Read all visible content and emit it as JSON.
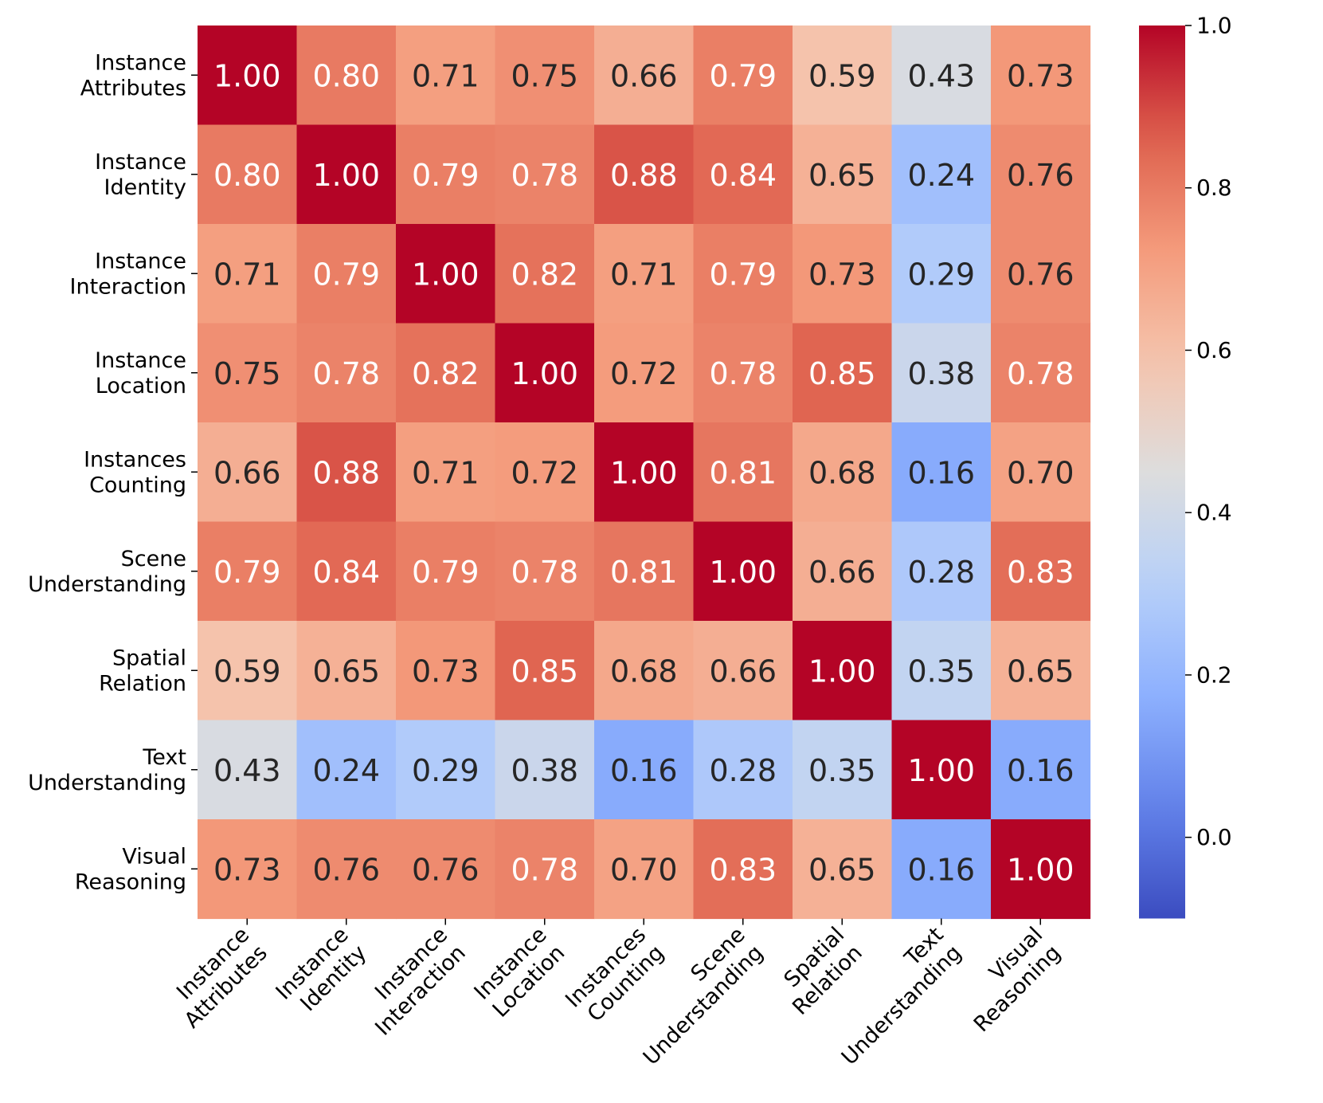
{
  "chart_data": {
    "type": "heatmap",
    "title": "",
    "xlabel": "",
    "ylabel": "",
    "row_labels": [
      [
        "Instance",
        "Attributes"
      ],
      [
        "Instance",
        "Identity"
      ],
      [
        "Instance",
        "Interaction"
      ],
      [
        "Instance",
        "Location"
      ],
      [
        "Instances",
        "Counting"
      ],
      [
        "Scene",
        "Understanding"
      ],
      [
        "Spatial",
        "Relation"
      ],
      [
        "Text",
        "Understanding"
      ],
      [
        "Visual",
        "Reasoning"
      ]
    ],
    "col_labels": [
      [
        "Instance",
        "Attributes"
      ],
      [
        "Instance",
        "Identity"
      ],
      [
        "Instance",
        "Interaction"
      ],
      [
        "Instance",
        "Location"
      ],
      [
        "Instances",
        "Counting"
      ],
      [
        "Scene",
        "Understanding"
      ],
      [
        "Spatial",
        "Relation"
      ],
      [
        "Text",
        "Understanding"
      ],
      [
        "Visual",
        "Reasoning"
      ]
    ],
    "values": [
      [
        1.0,
        0.8,
        0.71,
        0.75,
        0.66,
        0.79,
        0.59,
        0.43,
        0.73
      ],
      [
        0.8,
        1.0,
        0.79,
        0.78,
        0.88,
        0.84,
        0.65,
        0.24,
        0.76
      ],
      [
        0.71,
        0.79,
        1.0,
        0.82,
        0.71,
        0.79,
        0.73,
        0.29,
        0.76
      ],
      [
        0.75,
        0.78,
        0.82,
        1.0,
        0.72,
        0.78,
        0.85,
        0.38,
        0.78
      ],
      [
        0.66,
        0.88,
        0.71,
        0.72,
        1.0,
        0.81,
        0.68,
        0.16,
        0.7
      ],
      [
        0.79,
        0.84,
        0.79,
        0.78,
        0.81,
        1.0,
        0.66,
        0.28,
        0.83
      ],
      [
        0.59,
        0.65,
        0.73,
        0.85,
        0.68,
        0.66,
        1.0,
        0.35,
        0.65
      ],
      [
        0.43,
        0.24,
        0.29,
        0.38,
        0.16,
        0.28,
        0.35,
        1.0,
        0.16
      ],
      [
        0.73,
        0.76,
        0.76,
        0.78,
        0.7,
        0.83,
        0.65,
        0.16,
        1.0
      ]
    ],
    "value_format": "0.00",
    "colormap": "coolwarm",
    "vmin": -0.1,
    "vmax": 1.0,
    "colorbar_ticks": [
      "0.0",
      "0.2",
      "0.4",
      "0.6",
      "0.8",
      "1.0"
    ],
    "colorbar_tick_values": [
      0.0,
      0.2,
      0.4,
      0.6,
      0.8,
      1.0
    ],
    "grid": false
  }
}
